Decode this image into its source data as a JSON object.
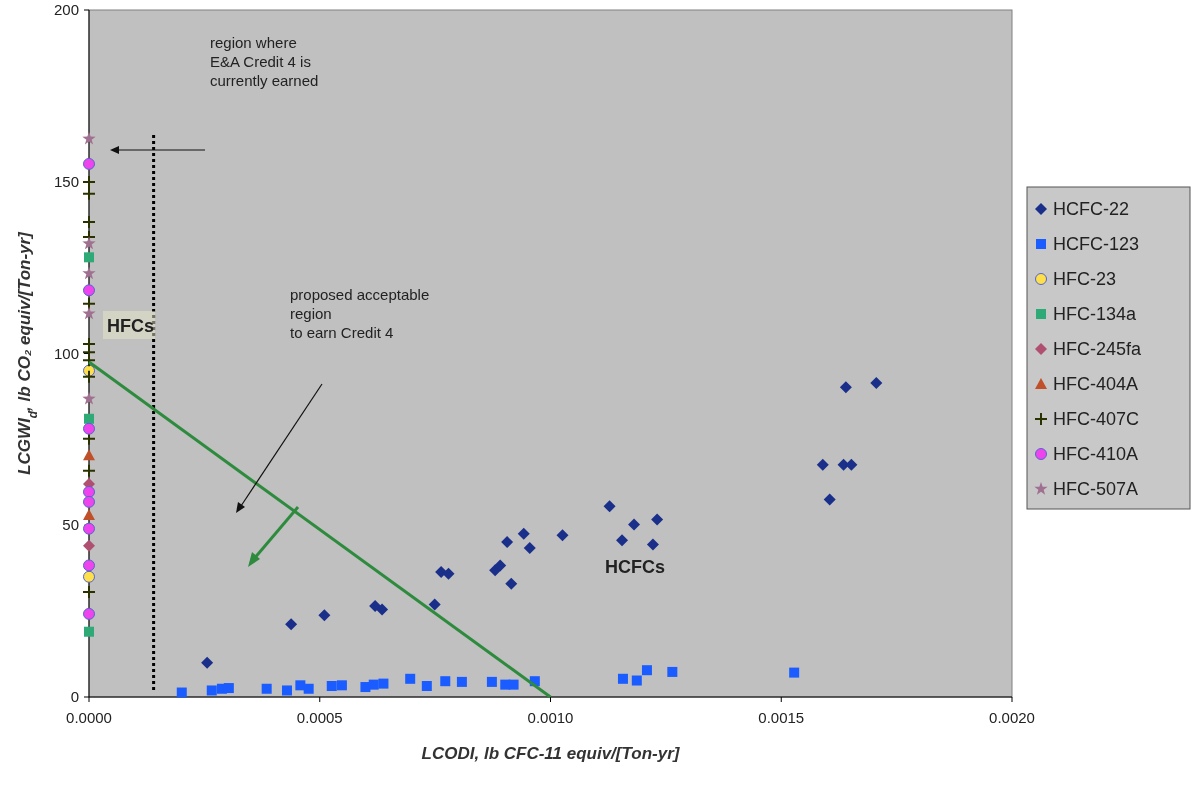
{
  "chart_data": {
    "type": "scatter",
    "xlabel": "LCODI, lb CFC-11 equiv/[Ton-yr]",
    "ylabel": "LCGWI$_{d}$, lb CO₂ equiv/[Ton-yr]",
    "xlim": [
      0,
      0.002
    ],
    "ylim": [
      0,
      200
    ],
    "xticks": [
      {
        "value": 0,
        "label": "0.0000"
      },
      {
        "value": 0.0005,
        "label": "0.0005"
      },
      {
        "value": 0.001,
        "label": "0.0010"
      },
      {
        "value": 0.0015,
        "label": "0.0015"
      },
      {
        "value": 0.002,
        "label": "0.0020"
      }
    ],
    "yticks": [
      0,
      50,
      100,
      150,
      200
    ],
    "grid": false,
    "legend": "right",
    "series": [
      {
        "name": "HCFC-22",
        "color": "#1a2f8a",
        "marker": "diamond",
        "x": [
          0.000256,
          0.000438,
          0.00051,
          0.00062,
          0.000635,
          0.000749,
          0.000763,
          0.000779,
          0.00088,
          0.000891,
          0.000915,
          0.000906,
          0.000942,
          0.000955,
          0.001026,
          0.001128,
          0.001155,
          0.001181,
          0.001231,
          0.001222,
          0.00159,
          0.001635,
          0.001652,
          0.001605,
          0.00164,
          0.001706
        ],
        "values": [
          10,
          21.2,
          23.8,
          26.5,
          25.5,
          26.9,
          36.4,
          35.9,
          36.9,
          38.3,
          33,
          45.1,
          47.5,
          43.4,
          47.1,
          55.5,
          45.6,
          50.2,
          51.7,
          44.4,
          67.6,
          67.6,
          67.6,
          57.5,
          90.2,
          91.4
        ]
      },
      {
        "name": "HCFC-123",
        "color": "#1a5cff",
        "marker": "square",
        "x": [
          0.000201,
          0.000266,
          0.000288,
          0.000303,
          0.000385,
          0.000429,
          0.000458,
          0.000476,
          0.000526,
          0.000548,
          0.000599,
          0.000617,
          0.000638,
          0.000696,
          0.000732,
          0.000772,
          0.000808,
          0.000873,
          0.000902,
          0.00092,
          0.000966,
          0.001157,
          0.001187,
          0.001209,
          0.001264,
          0.001528
        ],
        "values": [
          1.3,
          1.9,
          2.4,
          2.6,
          2.4,
          1.9,
          3.4,
          2.4,
          3.2,
          3.4,
          2.9,
          3.6,
          3.9,
          5.3,
          3.2,
          4.6,
          4.4,
          4.4,
          3.6,
          3.6,
          4.6,
          5.3,
          4.8,
          7.8,
          7.3,
          7.1
        ]
      },
      {
        "name": "HFC-23",
        "color": "#ffe04a",
        "marker": "circle",
        "x": [
          0,
          0
        ],
        "values": [
          95,
          35
        ]
      },
      {
        "name": "HFC-134a",
        "color": "#2eaa77",
        "marker": "square",
        "x": [
          0,
          0,
          0
        ],
        "values": [
          128,
          81,
          19
        ]
      },
      {
        "name": "HFC-245fa",
        "color": "#b05070",
        "marker": "diamond",
        "x": [
          0,
          0
        ],
        "values": [
          44,
          62
        ]
      },
      {
        "name": "HFC-404A",
        "color": "#c0502a",
        "marker": "triangle",
        "x": [
          0,
          0
        ],
        "values": [
          70.4,
          53
        ]
      },
      {
        "name": "HFC-407C",
        "color": "#2a3300",
        "marker": "cross",
        "x": [
          0,
          0,
          0,
          0,
          0,
          0,
          0,
          0,
          0,
          0,
          0,
          0
        ],
        "values": [
          149.9,
          146.5,
          138.3,
          133.9,
          114.5,
          102.8,
          100.4,
          98,
          93.2,
          75.2,
          65.9,
          30.6
        ]
      },
      {
        "name": "HFC-410A",
        "color": "#ee44ee",
        "marker": "circle",
        "x": [
          0,
          0,
          0,
          0,
          0,
          0,
          0,
          0
        ],
        "values": [
          155.2,
          118.4,
          78.1,
          59.7,
          56.8,
          49,
          38.3,
          24.2
        ]
      },
      {
        "name": "HFC-507A",
        "color": "#a07090",
        "marker": "star",
        "x": [
          0,
          0,
          0,
          0,
          0
        ],
        "values": [
          162.5,
          132,
          123.3,
          111.6,
          86.8
        ]
      },
      {
        "type": "line",
        "color": "#2e8b3e",
        "marker": "none",
        "x": [
          0,
          0.001
        ],
        "values": [
          97.5,
          0
        ]
      }
    ],
    "ref_lines": [
      {
        "axis": "x",
        "value": 0.00014,
        "color": "#000000",
        "line_style": "dotted"
      }
    ],
    "annotations": [
      "region where\nE&A Credit 4 is\ncurrently earned",
      "HFCs",
      "proposed acceptable\nregion\nto earn Credit 4",
      "HCFCs"
    ]
  }
}
